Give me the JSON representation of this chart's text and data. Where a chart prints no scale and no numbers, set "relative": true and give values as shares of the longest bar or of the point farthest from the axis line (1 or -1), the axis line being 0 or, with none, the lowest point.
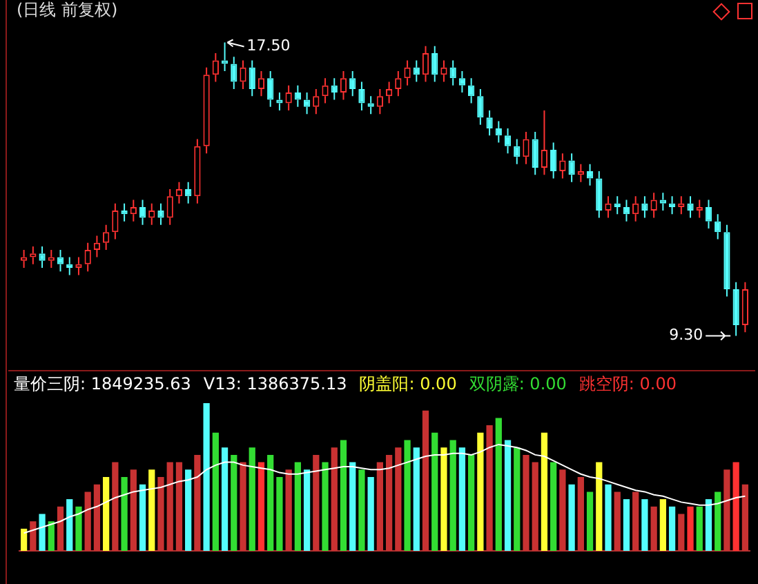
{
  "chart_data": [
    {
      "type": "candlestick",
      "title": "(日线 前复权)",
      "categories": [
        null,
        null,
        null,
        null,
        null,
        null,
        null,
        null,
        null,
        null,
        null,
        null,
        null,
        null,
        null,
        null,
        null,
        null,
        null,
        null,
        null,
        null,
        null,
        null,
        null,
        null,
        null,
        null,
        null,
        null,
        null,
        null,
        null,
        null,
        null,
        null,
        null,
        null,
        null,
        null,
        null,
        null,
        null,
        null,
        null,
        null,
        null,
        null,
        null,
        null,
        null,
        null,
        null,
        null,
        null,
        null,
        null,
        null,
        null,
        null,
        null,
        null,
        null,
        null,
        null,
        null,
        null,
        null,
        null,
        null,
        null,
        null,
        null,
        null,
        null,
        null,
        null,
        null,
        null,
        null
      ],
      "ohlc": [
        [
          11.4,
          11.7,
          11.2,
          11.5
        ],
        [
          11.5,
          11.8,
          11.3,
          11.6
        ],
        [
          11.6,
          11.8,
          11.2,
          11.4
        ],
        [
          11.4,
          11.7,
          11.2,
          11.5
        ],
        [
          11.5,
          11.7,
          11.1,
          11.3
        ],
        [
          11.3,
          11.5,
          11.0,
          11.2
        ],
        [
          11.2,
          11.5,
          11.0,
          11.3
        ],
        [
          11.3,
          11.9,
          11.1,
          11.7
        ],
        [
          11.7,
          12.1,
          11.5,
          11.9
        ],
        [
          11.9,
          12.4,
          11.7,
          12.2
        ],
        [
          12.2,
          13.0,
          12.0,
          12.8
        ],
        [
          12.8,
          13.0,
          12.5,
          12.7
        ],
        [
          12.7,
          13.1,
          12.5,
          12.9
        ],
        [
          12.9,
          13.1,
          12.4,
          12.6
        ],
        [
          12.6,
          13.0,
          12.4,
          12.8
        ],
        [
          12.8,
          13.0,
          12.4,
          12.6
        ],
        [
          12.6,
          13.4,
          12.4,
          13.2
        ],
        [
          13.2,
          13.6,
          13.0,
          13.4
        ],
        [
          13.4,
          13.6,
          13.0,
          13.2
        ],
        [
          13.2,
          14.8,
          13.0,
          14.6
        ],
        [
          14.6,
          16.8,
          14.4,
          16.6
        ],
        [
          16.6,
          17.2,
          16.4,
          17.0
        ],
        [
          17.0,
          17.5,
          16.7,
          16.9
        ],
        [
          16.9,
          17.1,
          16.2,
          16.4
        ],
        [
          16.4,
          17.0,
          16.2,
          16.8
        ],
        [
          16.8,
          17.0,
          16.0,
          16.2
        ],
        [
          16.2,
          16.7,
          16.0,
          16.5
        ],
        [
          16.5,
          16.7,
          15.7,
          15.9
        ],
        [
          15.9,
          16.1,
          15.6,
          15.8
        ],
        [
          15.8,
          16.3,
          15.6,
          16.1
        ],
        [
          16.1,
          16.3,
          15.7,
          15.9
        ],
        [
          15.9,
          16.1,
          15.5,
          15.7
        ],
        [
          15.7,
          16.2,
          15.5,
          16.0
        ],
        [
          16.0,
          16.5,
          15.8,
          16.3
        ],
        [
          16.3,
          16.5,
          15.9,
          16.1
        ],
        [
          16.1,
          16.7,
          15.9,
          16.5
        ],
        [
          16.5,
          16.7,
          16.0,
          16.2
        ],
        [
          16.2,
          16.4,
          15.6,
          15.8
        ],
        [
          15.8,
          16.0,
          15.5,
          15.7
        ],
        [
          15.7,
          16.2,
          15.5,
          16.0
        ],
        [
          16.0,
          16.4,
          15.8,
          16.2
        ],
        [
          16.2,
          16.7,
          16.0,
          16.5
        ],
        [
          16.5,
          17.0,
          16.3,
          16.8
        ],
        [
          16.8,
          17.0,
          16.4,
          16.6
        ],
        [
          16.6,
          17.4,
          16.4,
          17.2
        ],
        [
          17.2,
          17.4,
          16.4,
          16.6
        ],
        [
          16.6,
          17.0,
          16.4,
          16.8
        ],
        [
          16.8,
          17.0,
          16.3,
          16.5
        ],
        [
          16.5,
          16.7,
          16.1,
          16.3
        ],
        [
          16.3,
          16.5,
          15.8,
          16.0
        ],
        [
          16.0,
          16.2,
          15.2,
          15.4
        ],
        [
          15.4,
          15.6,
          14.9,
          15.1
        ],
        [
          15.1,
          15.3,
          14.7,
          14.9
        ],
        [
          14.9,
          15.1,
          14.4,
          14.6
        ],
        [
          14.6,
          14.8,
          14.1,
          14.3
        ],
        [
          14.3,
          15.0,
          14.1,
          14.8
        ],
        [
          14.8,
          15.0,
          13.8,
          14.0
        ],
        [
          14.0,
          15.6,
          13.8,
          14.5
        ],
        [
          14.5,
          14.7,
          13.7,
          13.9
        ],
        [
          13.9,
          14.4,
          13.7,
          14.2
        ],
        [
          14.2,
          14.4,
          13.6,
          13.8
        ],
        [
          13.8,
          14.1,
          13.6,
          13.9
        ],
        [
          13.9,
          14.1,
          13.5,
          13.7
        ],
        [
          13.7,
          13.9,
          12.6,
          12.8
        ],
        [
          12.8,
          13.2,
          12.6,
          13.0
        ],
        [
          13.0,
          13.2,
          12.7,
          12.9
        ],
        [
          12.9,
          13.1,
          12.5,
          12.7
        ],
        [
          12.7,
          13.2,
          12.5,
          13.0
        ],
        [
          13.0,
          13.2,
          12.6,
          12.8
        ],
        [
          12.8,
          13.3,
          12.6,
          13.1
        ],
        [
          13.1,
          13.3,
          12.8,
          13.0
        ],
        [
          13.0,
          13.2,
          12.7,
          12.9
        ],
        [
          12.9,
          13.2,
          12.7,
          13.0
        ],
        [
          13.0,
          13.2,
          12.6,
          12.8
        ],
        [
          12.8,
          13.1,
          12.6,
          12.9
        ],
        [
          12.9,
          13.1,
          12.3,
          12.5
        ],
        [
          12.5,
          12.7,
          12.0,
          12.2
        ],
        [
          12.2,
          12.4,
          10.4,
          10.6
        ],
        [
          10.6,
          10.8,
          9.3,
          9.6
        ],
        [
          9.6,
          10.8,
          9.4,
          10.6
        ]
      ],
      "colors": [
        "#ff3232",
        "#ff3232",
        "#54fcfc",
        "#ff3232",
        "#54fcfc",
        "#54fcfc",
        "#ff3232",
        "#ff3232",
        "#ff3232",
        "#ff3232",
        "#ff3232",
        "#54fcfc",
        "#ff3232",
        "#54fcfc",
        "#ff3232",
        "#54fcfc",
        "#ff3232",
        "#ff3232",
        "#54fcfc",
        "#ff3232",
        "#ff3232",
        "#ff3232",
        "#54fcfc",
        "#54fcfc",
        "#ff3232",
        "#54fcfc",
        "#ff3232",
        "#54fcfc",
        "#54fcfc",
        "#ff3232",
        "#54fcfc",
        "#54fcfc",
        "#ff3232",
        "#ff3232",
        "#54fcfc",
        "#ff3232",
        "#54fcfc",
        "#54fcfc",
        "#54fcfc",
        "#ff3232",
        "#ff3232",
        "#ff3232",
        "#ff3232",
        "#54fcfc",
        "#ff3232",
        "#54fcfc",
        "#ff3232",
        "#54fcfc",
        "#54fcfc",
        "#54fcfc",
        "#54fcfc",
        "#54fcfc",
        "#54fcfc",
        "#54fcfc",
        "#54fcfc",
        "#ff3232",
        "#54fcfc",
        "#ff3232",
        "#54fcfc",
        "#ff3232",
        "#54fcfc",
        "#ff3232",
        "#54fcfc",
        "#54fcfc",
        "#ff3232",
        "#54fcfc",
        "#54fcfc",
        "#ff3232",
        "#54fcfc",
        "#ff3232",
        "#54fcfc",
        "#54fcfc",
        "#ff3232",
        "#54fcfc",
        "#ff3232",
        "#54fcfc",
        "#54fcfc",
        "#54fcfc",
        "#54fcfc",
        "#ff3232"
      ],
      "annotations": [
        "17.50",
        "9.30"
      ]
    },
    {
      "type": "bar",
      "relative": true,
      "annotations": [
        "量价三阴: 1849235.63",
        "V13: 1386375.13",
        "阴盖阳: 0.00",
        "双阴露: 0.00",
        "跳空阴: 0.00"
      ],
      "categories": [
        null,
        null,
        null,
        null,
        null,
        null,
        null,
        null,
        null,
        null,
        null,
        null,
        null,
        null,
        null,
        null,
        null,
        null,
        null,
        null,
        null,
        null,
        null,
        null,
        null,
        null,
        null,
        null,
        null,
        null,
        null,
        null,
        null,
        null,
        null,
        null,
        null,
        null,
        null,
        null,
        null,
        null,
        null,
        null,
        null,
        null,
        null,
        null,
        null,
        null,
        null,
        null,
        null,
        null,
        null,
        null,
        null,
        null,
        null,
        null,
        null,
        null,
        null,
        null,
        null,
        null,
        null,
        null,
        null,
        null,
        null,
        null,
        null,
        null,
        null,
        null,
        null,
        null,
        null,
        null
      ],
      "series": [
        {
          "type": "bar",
          "values": [
            0.15,
            0.2,
            0.25,
            0.2,
            0.3,
            0.35,
            0.3,
            0.4,
            0.45,
            0.5,
            0.6,
            0.5,
            0.55,
            0.45,
            0.55,
            0.5,
            0.6,
            0.6,
            0.55,
            0.65,
            1.0,
            0.8,
            0.7,
            0.65,
            0.6,
            0.7,
            0.6,
            0.65,
            0.5,
            0.55,
            0.6,
            0.55,
            0.65,
            0.6,
            0.7,
            0.75,
            0.6,
            0.55,
            0.5,
            0.6,
            0.65,
            0.7,
            0.75,
            0.7,
            0.95,
            0.8,
            0.7,
            0.75,
            0.7,
            0.65,
            0.8,
            0.85,
            0.9,
            0.75,
            0.7,
            0.65,
            0.6,
            0.8,
            0.6,
            0.55,
            0.45,
            0.5,
            0.4,
            0.6,
            0.45,
            0.4,
            0.35,
            0.4,
            0.35,
            0.3,
            0.35,
            0.3,
            0.25,
            0.3,
            0.3,
            0.35,
            0.4,
            0.55,
            0.6,
            0.45
          ],
          "colors": [
            "#ffff33",
            "#c83232",
            "#54fcfc",
            "#33dd33",
            "#c83232",
            "#54fcfc",
            "#33dd33",
            "#c83232",
            "#c83232",
            "#ffff33",
            "#c83232",
            "#33dd33",
            "#c83232",
            "#54fcfc",
            "#ffff33",
            "#c83232",
            "#c83232",
            "#c83232",
            "#54fcfc",
            "#c83232",
            "#54fcfc",
            "#33dd33",
            "#54fcfc",
            "#33dd33",
            "#c83232",
            "#33dd33",
            "#ff3232",
            "#33dd33",
            "#33dd33",
            "#c83232",
            "#33dd33",
            "#54fcfc",
            "#c83232",
            "#33dd33",
            "#c83232",
            "#33dd33",
            "#54fcfc",
            "#33dd33",
            "#54fcfc",
            "#c83232",
            "#c83232",
            "#c83232",
            "#33dd33",
            "#54fcfc",
            "#c83232",
            "#33dd33",
            "#ffff33",
            "#33dd33",
            "#54fcfc",
            "#33dd33",
            "#ffff33",
            "#c83232",
            "#33dd33",
            "#54fcfc",
            "#33dd33",
            "#c83232",
            "#c83232",
            "#ffff33",
            "#33dd33",
            "#c83232",
            "#54fcfc",
            "#c83232",
            "#33dd33",
            "#ffff33",
            "#54fcfc",
            "#c83232",
            "#54fcfc",
            "#c83232",
            "#54fcfc",
            "#c83232",
            "#ffff33",
            "#54fcfc",
            "#c83232",
            "#ff3232",
            "#33dd33",
            "#54fcfc",
            "#33dd33",
            "#c83232",
            "#ff3232",
            "#c83232"
          ]
        },
        {
          "type": "line",
          "color": "#ffffff",
          "values": [
            0.12,
            0.14,
            0.16,
            0.18,
            0.2,
            0.23,
            0.25,
            0.28,
            0.3,
            0.33,
            0.36,
            0.38,
            0.4,
            0.41,
            0.42,
            0.43,
            0.45,
            0.47,
            0.48,
            0.5,
            0.55,
            0.58,
            0.6,
            0.6,
            0.58,
            0.57,
            0.56,
            0.55,
            0.53,
            0.52,
            0.52,
            0.53,
            0.54,
            0.55,
            0.56,
            0.57,
            0.57,
            0.56,
            0.55,
            0.55,
            0.56,
            0.58,
            0.6,
            0.62,
            0.64,
            0.65,
            0.65,
            0.66,
            0.66,
            0.65,
            0.67,
            0.7,
            0.72,
            0.71,
            0.7,
            0.68,
            0.65,
            0.64,
            0.61,
            0.58,
            0.55,
            0.52,
            0.5,
            0.49,
            0.47,
            0.45,
            0.43,
            0.41,
            0.4,
            0.38,
            0.37,
            0.35,
            0.33,
            0.32,
            0.31,
            0.31,
            0.32,
            0.34,
            0.36,
            0.37
          ]
        }
      ]
    }
  ]
}
